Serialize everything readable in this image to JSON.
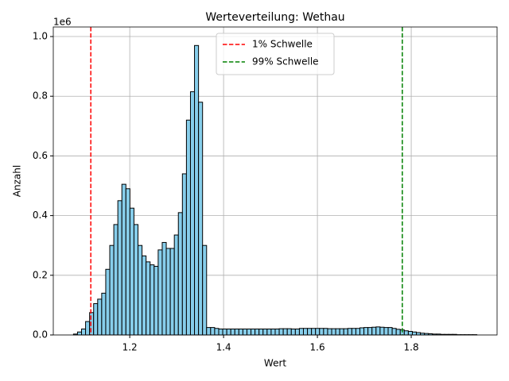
{
  "chart_data": {
    "type": "histogram",
    "title": "Werteverteilung: Wethau",
    "xlabel": "Wert",
    "ylabel": "Anzahl",
    "y_offset_label": "1e6",
    "color": "#87ceeb",
    "edgecolor": "#000000",
    "grid": true,
    "legend": "upper center",
    "xlim": [
      1.037,
      1.983
    ],
    "ylim": [
      0,
      1032000
    ],
    "xticks": [
      1.2,
      1.4,
      1.6,
      1.8
    ],
    "yticks": [
      {
        "value": 0,
        "label": "0.0"
      },
      {
        "value": 200000,
        "label": "0.2"
      },
      {
        "value": 400000,
        "label": "0.4"
      },
      {
        "value": 600000,
        "label": "0.6"
      },
      {
        "value": 800000,
        "label": "0.8"
      },
      {
        "value": 1000000,
        "label": "1.0"
      }
    ],
    "bins": [
      1.08,
      1.0886,
      1.0972,
      1.1058,
      1.1144,
      1.123,
      1.1316,
      1.1402,
      1.1488,
      1.1574,
      1.166,
      1.1746,
      1.1832,
      1.1918,
      1.2004,
      1.209,
      1.2176,
      1.2262,
      1.2348,
      1.2434,
      1.252,
      1.2606,
      1.2692,
      1.2778,
      1.2864,
      1.295,
      1.3036,
      1.3122,
      1.3208,
      1.3294,
      1.338,
      1.3466,
      1.3552,
      1.3638,
      1.3724,
      1.381,
      1.3896,
      1.3982,
      1.4068,
      1.4154,
      1.424,
      1.4326,
      1.4412,
      1.4498,
      1.4584,
      1.467,
      1.4756,
      1.4842,
      1.4928,
      1.5014,
      1.51,
      1.5186,
      1.5272,
      1.5358,
      1.5444,
      1.553,
      1.5616,
      1.5702,
      1.5788,
      1.5874,
      1.596,
      1.6046,
      1.6132,
      1.6218,
      1.6304,
      1.639,
      1.6476,
      1.6562,
      1.6648,
      1.6734,
      1.682,
      1.6906,
      1.6992,
      1.7078,
      1.7164,
      1.725,
      1.7336,
      1.7422,
      1.7508,
      1.7594,
      1.768,
      1.7766,
      1.7852,
      1.7938,
      1.8024,
      1.811,
      1.8196,
      1.8282,
      1.8368,
      1.8454,
      1.854,
      1.8626,
      1.8712,
      1.8798,
      1.8884,
      1.897,
      1.9056,
      1.9142,
      1.9228,
      1.9314,
      1.94
    ],
    "values": [
      3000,
      10000,
      20000,
      45000,
      75000,
      105000,
      120000,
      140000,
      220000,
      300000,
      370000,
      450000,
      505000,
      490000,
      425000,
      370000,
      300000,
      265000,
      245000,
      235000,
      230000,
      285000,
      310000,
      290000,
      290000,
      335000,
      410000,
      540000,
      720000,
      815000,
      970000,
      780000,
      300000,
      25000,
      25000,
      22000,
      20000,
      20000,
      20000,
      20000,
      20000,
      20000,
      20000,
      20000,
      20000,
      20000,
      20000,
      20000,
      20000,
      20000,
      20000,
      21000,
      21000,
      21000,
      20000,
      20000,
      22000,
      22000,
      22000,
      22000,
      22000,
      22000,
      22000,
      21000,
      21000,
      21000,
      21000,
      21000,
      22000,
      22000,
      22000,
      24000,
      25000,
      25000,
      26000,
      27000,
      26000,
      25000,
      25000,
      22000,
      19000,
      17000,
      14000,
      12000,
      10000,
      8000,
      6000,
      5000,
      4000,
      3000,
      3000,
      2000,
      2000,
      2000,
      2000,
      1000,
      1000,
      1000,
      1000,
      1000
    ],
    "vlines": [
      {
        "name": "1% Schwelle",
        "x": 1.117,
        "color": "#ff0000"
      },
      {
        "name": "99% Schwelle",
        "x": 1.781,
        "color": "#008000"
      }
    ]
  }
}
